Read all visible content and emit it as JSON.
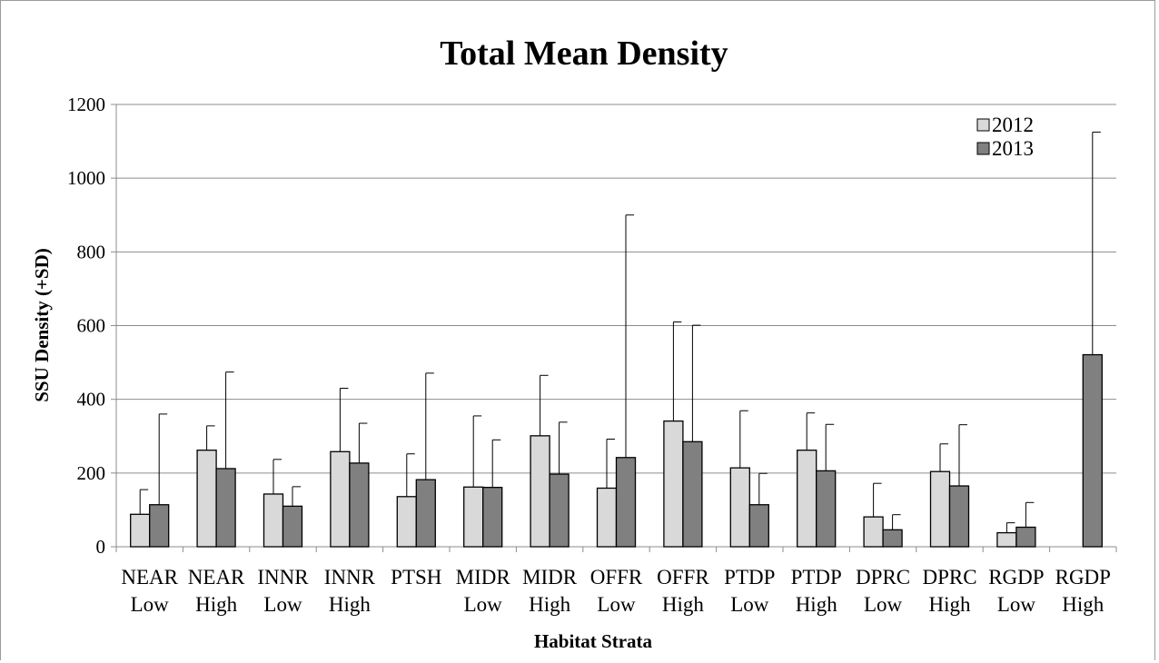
{
  "chart_data": {
    "type": "bar",
    "title": "Total Mean Density",
    "xlabel": "Habitat Strata",
    "ylabel": "SSU Density (+SD)",
    "ylim": [
      0,
      1200
    ],
    "yticks": [
      0,
      200,
      400,
      600,
      800,
      1000,
      1200
    ],
    "grid": true,
    "legend_position": "top-right",
    "categories": [
      [
        "NEAR",
        "Low"
      ],
      [
        "NEAR",
        "High"
      ],
      [
        "INNR",
        "Low"
      ],
      [
        "INNR",
        "High"
      ],
      [
        "PTSH",
        ""
      ],
      [
        "MIDR",
        "Low"
      ],
      [
        "MIDR",
        "High"
      ],
      [
        "OFFR",
        "Low"
      ],
      [
        "OFFR",
        "High"
      ],
      [
        "PTDP",
        "Low"
      ],
      [
        "PTDP",
        "High"
      ],
      [
        "DPRC",
        "Low"
      ],
      [
        "DPRC",
        "High"
      ],
      [
        "RGDP",
        "Low"
      ],
      [
        "RGDP",
        "High"
      ]
    ],
    "series": [
      {
        "name": "2012",
        "color": "#d9d9d9",
        "values": [
          88,
          262,
          143,
          258,
          136,
          162,
          301,
          159,
          341,
          214,
          262,
          81,
          204,
          38,
          0
        ],
        "sd_top": [
          155,
          328,
          237,
          430,
          252,
          355,
          465,
          292,
          610,
          369,
          363,
          172,
          279,
          65,
          0
        ]
      },
      {
        "name": "2013",
        "color": "#808080",
        "values": [
          114,
          212,
          110,
          227,
          182,
          161,
          197,
          242,
          285,
          114,
          206,
          46,
          165,
          53,
          521
        ],
        "sd_top": [
          360,
          474,
          163,
          335,
          471,
          290,
          338,
          900,
          601,
          199,
          332,
          87,
          331,
          120,
          1125
        ]
      }
    ]
  }
}
